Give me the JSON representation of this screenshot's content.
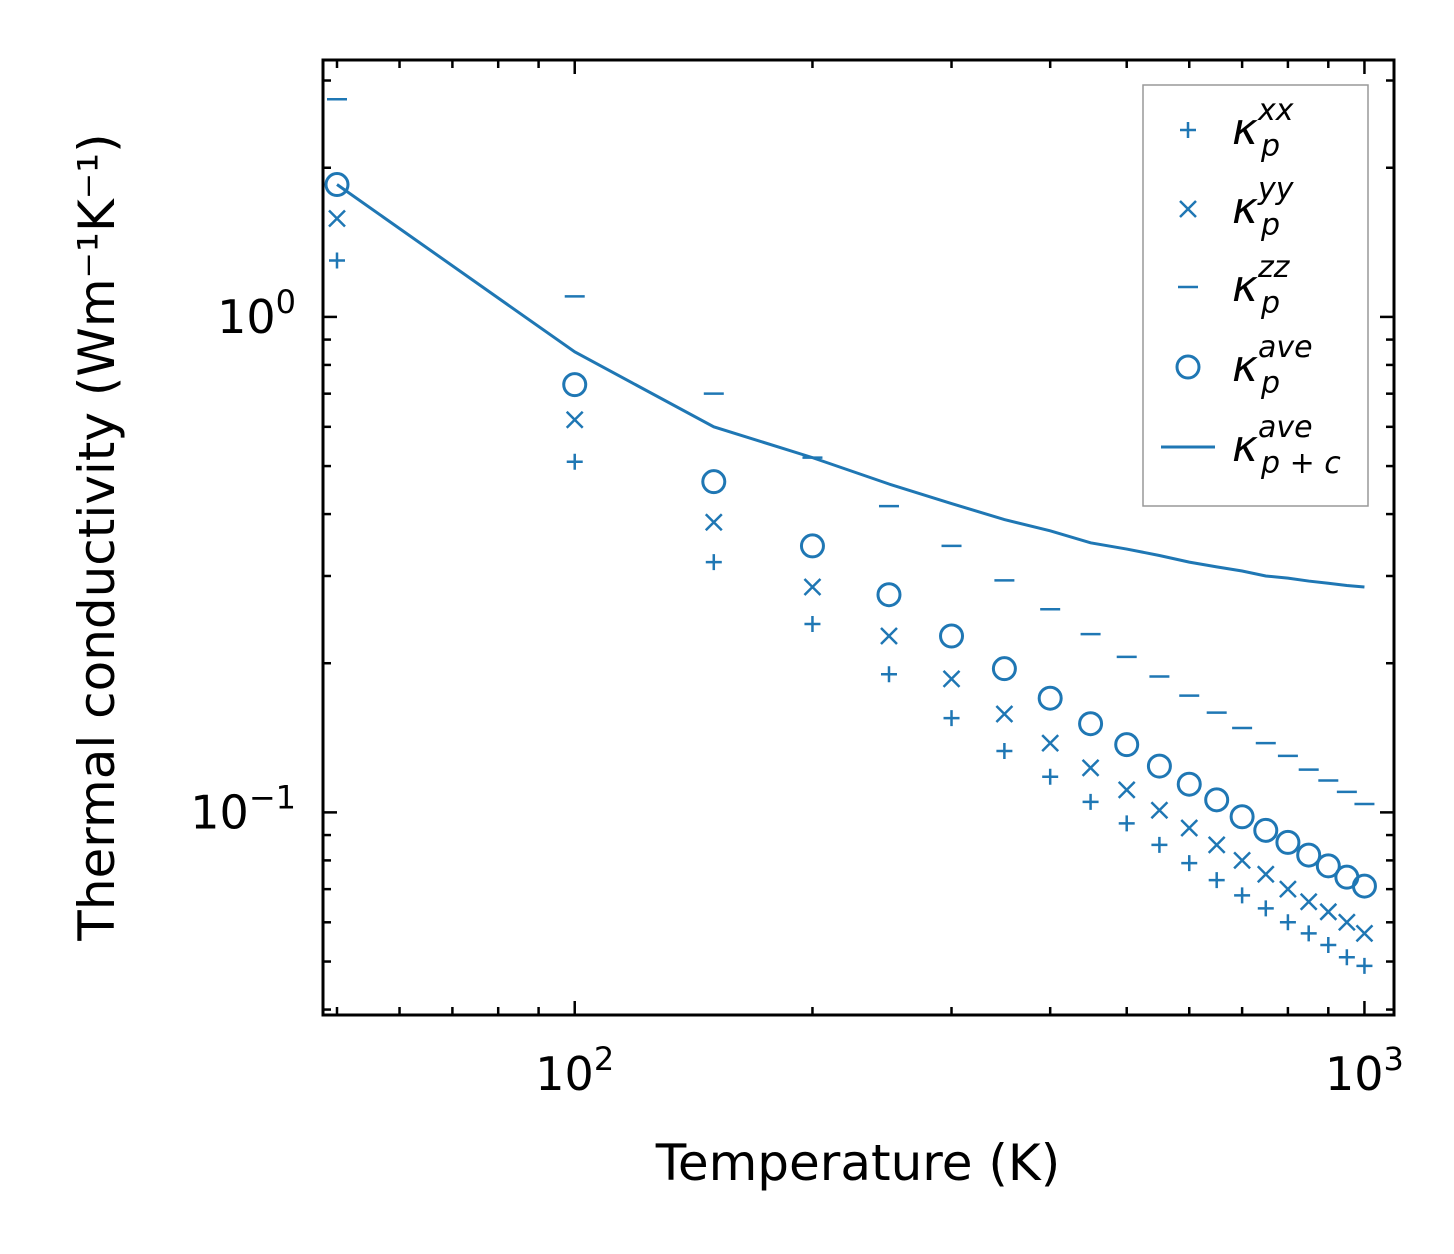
{
  "chart_data": {
    "type": "scatter",
    "x_scale": "log",
    "y_scale": "log",
    "xlabel": "Temperature (K)",
    "ylabel": "Thermal conductivity (Wm⁻¹K⁻¹)",
    "xlim": [
      48,
      1090
    ],
    "ylim": [
      0.039,
      3.3
    ],
    "x_ticks": [
      {
        "value": 100,
        "base": "10",
        "exp": "2"
      },
      {
        "value": 1000,
        "base": "10",
        "exp": "3"
      }
    ],
    "y_ticks": [
      {
        "value": 0.1,
        "base": "10",
        "exp": "−1"
      },
      {
        "value": 1,
        "base": "10",
        "exp": "0"
      }
    ],
    "x": [
      50,
      100,
      150,
      200,
      250,
      300,
      350,
      400,
      450,
      500,
      550,
      600,
      650,
      700,
      750,
      800,
      850,
      900,
      950,
      1000
    ],
    "series": [
      {
        "name": "kappa_p_xx",
        "marker": "plus",
        "legend": {
          "base": "κ",
          "sub": "p",
          "sup": "xx"
        },
        "values": [
          1.3,
          0.51,
          0.32,
          0.24,
          0.19,
          0.155,
          0.133,
          0.118,
          0.105,
          0.095,
          0.086,
          0.079,
          0.073,
          0.068,
          0.064,
          0.06,
          0.057,
          0.054,
          0.051,
          0.049
        ]
      },
      {
        "name": "kappa_p_yy",
        "marker": "x",
        "legend": {
          "base": "κ",
          "sub": "p",
          "sup": "yy"
        },
        "values": [
          1.58,
          0.62,
          0.385,
          0.285,
          0.227,
          0.186,
          0.158,
          0.138,
          0.123,
          0.111,
          0.101,
          0.093,
          0.086,
          0.08,
          0.075,
          0.07,
          0.066,
          0.063,
          0.06,
          0.057
        ]
      },
      {
        "name": "kappa_p_zz",
        "marker": "dash",
        "legend": {
          "base": "κ",
          "sub": "p",
          "sup": "zz"
        },
        "values": [
          2.75,
          1.1,
          0.7,
          0.52,
          0.415,
          0.345,
          0.294,
          0.257,
          0.229,
          0.206,
          0.188,
          0.172,
          0.159,
          0.148,
          0.138,
          0.13,
          0.122,
          0.116,
          0.11,
          0.104
        ]
      },
      {
        "name": "kappa_p_ave",
        "marker": "circle",
        "legend": {
          "base": "κ",
          "sub": "p",
          "sup": "ave"
        },
        "values": [
          1.85,
          0.73,
          0.465,
          0.345,
          0.275,
          0.227,
          0.195,
          0.17,
          0.151,
          0.137,
          0.124,
          0.114,
          0.106,
          0.098,
          0.092,
          0.087,
          0.082,
          0.078,
          0.074,
          0.071
        ]
      },
      {
        "name": "kappa_p_plus_c_ave",
        "marker": "line",
        "legend": {
          "base": "κ",
          "sub": "p + c",
          "sup": "ave"
        },
        "values": [
          1.85,
          0.85,
          0.6,
          0.52,
          0.46,
          0.42,
          0.39,
          0.37,
          0.35,
          0.34,
          0.33,
          0.32,
          0.313,
          0.307,
          0.3,
          0.297,
          0.293,
          0.29,
          0.287,
          0.285
        ]
      }
    ],
    "legend_position": "top-right",
    "color": "#1f77b4",
    "grid": false
  }
}
